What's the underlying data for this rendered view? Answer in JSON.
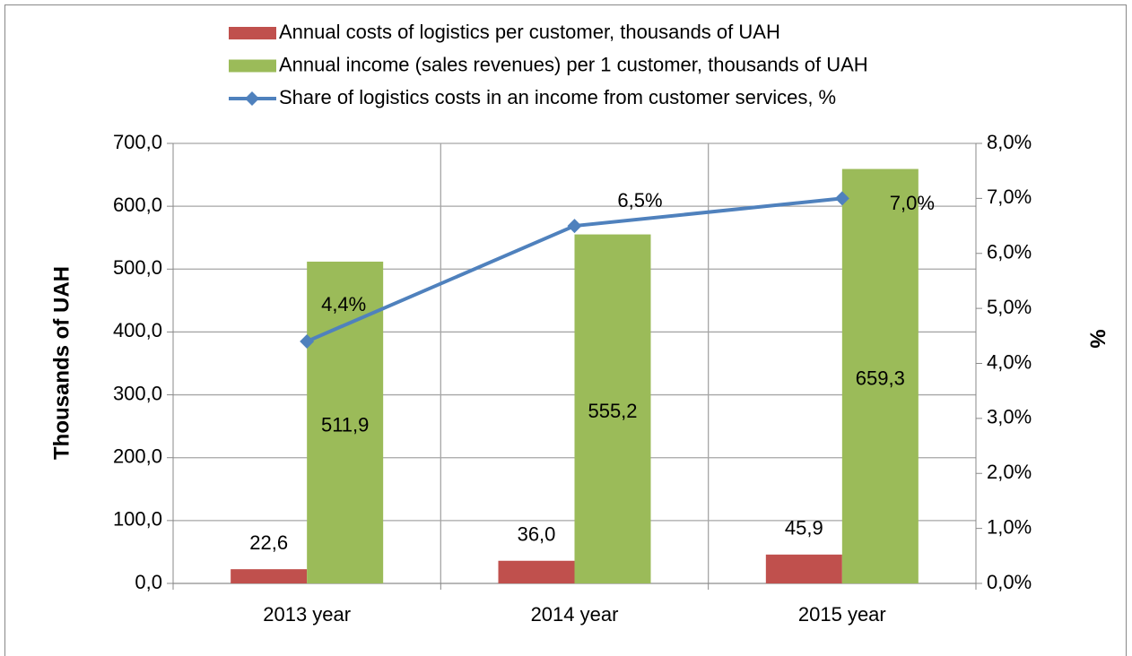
{
  "chart_data": {
    "type": "bar",
    "categories": [
      "2013 year",
      "2014 year",
      "2015 year"
    ],
    "y_label": "Thousands of UAH",
    "y2_label": "%",
    "ylim": [
      0,
      700
    ],
    "yticks": [
      {
        "value": 0,
        "label": "0,0"
      },
      {
        "value": 100,
        "label": "100,0"
      },
      {
        "value": 200,
        "label": "200,0"
      },
      {
        "value": 300,
        "label": "300,0"
      },
      {
        "value": 400,
        "label": "400,0"
      },
      {
        "value": 500,
        "label": "500,0"
      },
      {
        "value": 600,
        "label": "600,0"
      },
      {
        "value": 700,
        "label": "700,0"
      }
    ],
    "y2lim": [
      0,
      8
    ],
    "y2ticks": [
      {
        "value": 0,
        "label": "0,0%"
      },
      {
        "value": 1,
        "label": "1,0%"
      },
      {
        "value": 2,
        "label": "2,0%"
      },
      {
        "value": 3,
        "label": "3,0%"
      },
      {
        "value": 4,
        "label": "4,0%"
      },
      {
        "value": 5,
        "label": "5,0%"
      },
      {
        "value": 6,
        "label": "6,0%"
      },
      {
        "value": 7,
        "label": "7,0%"
      },
      {
        "value": 8,
        "label": "8,0%"
      }
    ],
    "grid": true,
    "legend": "top",
    "series": [
      {
        "name": "Annual costs of logistics per customer, thousands of UAH",
        "type": "bar",
        "color": "#c0504d",
        "values": [
          22.6,
          36.0,
          45.9
        ],
        "value_labels": [
          "22,6",
          "36,0",
          "45,9"
        ]
      },
      {
        "name": "Annual income (sales revenues) per 1 customer, thousands of UAH",
        "type": "bar",
        "color": "#9bbb59",
        "values": [
          511.9,
          555.2,
          659.3
        ],
        "value_labels": [
          "511,9",
          "555,2",
          "659,3"
        ]
      },
      {
        "name": "Share of logistics costs in an income from customer services, %",
        "type": "line",
        "axis": "y2",
        "color": "#4f81bd",
        "values": [
          4.4,
          6.5,
          7.0
        ],
        "value_labels": [
          "4,4%",
          "6,5%",
          "7,0%"
        ]
      }
    ]
  }
}
